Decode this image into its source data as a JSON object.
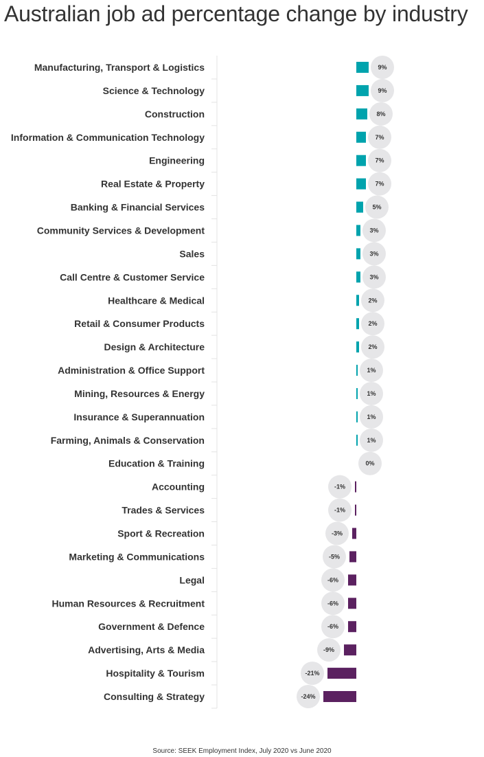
{
  "chart_data": {
    "type": "bar",
    "orientation": "horizontal",
    "title": "Australian job ad percentage change by industry",
    "source": "Source: SEEK Employment Index, July 2020 vs June 2020",
    "categories": [
      "Manufacturing, Transport & Logistics",
      "Science & Technology",
      "Construction",
      "Information & Communication Technology",
      "Engineering",
      "Real Estate & Property",
      "Banking & Financial Services",
      "Community Services & Development",
      "Sales",
      "Call Centre & Customer Service",
      "Healthcare & Medical",
      "Retail & Consumer Products",
      "Design & Architecture",
      "Administration & Office Support",
      "Mining, Resources & Energy",
      "Insurance & Superannuation",
      "Farming, Animals & Conservation",
      "Education & Training",
      "Accounting",
      "Trades & Services",
      "Sport & Recreation",
      "Marketing & Communications",
      "Legal",
      "Human Resources & Recruitment",
      "Government & Defence",
      "Advertising, Arts & Media",
      "Hospitality & Tourism",
      "Consulting & Strategy"
    ],
    "values": [
      9,
      9,
      8,
      7,
      7,
      7,
      5,
      3,
      3,
      3,
      2,
      2,
      2,
      1,
      1,
      1,
      1,
      0,
      -1,
      -1,
      -3,
      -5,
      -6,
      -6,
      -6,
      -9,
      -21,
      -24
    ],
    "value_labels": [
      "9%",
      "9%",
      "8%",
      "7%",
      "7%",
      "7%",
      "5%",
      "3%",
      "3%",
      "3%",
      "2%",
      "2%",
      "2%",
      "1%",
      "1%",
      "1%",
      "1%",
      "0%",
      "-1%",
      "-1%",
      "-3%",
      "-5%",
      "-6%",
      "-6%",
      "-6%",
      "-9%",
      "-21%",
      "-24%"
    ],
    "unit": "%",
    "colors": {
      "positive": "#00a3ad",
      "negative": "#5b2160",
      "label_bubble": "#e6e6e8"
    },
    "xlabel": "",
    "ylabel": "",
    "grid": false,
    "legend": "none"
  }
}
